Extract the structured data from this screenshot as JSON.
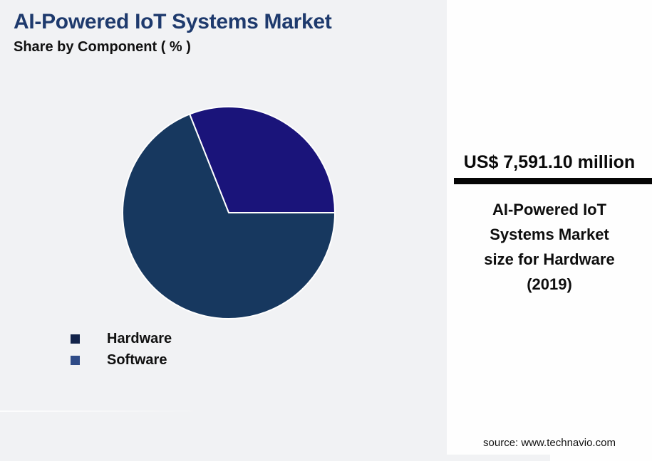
{
  "page": {
    "background": "#F1F2F4"
  },
  "header": {
    "title": "AI-Powered IoT Systems Market",
    "subtitle": "Share by Component ( % )",
    "title_color": "#1E3A6D"
  },
  "chart_data": {
    "type": "pie",
    "title": "AI-Powered IoT Systems Market",
    "subtitle": "Share by Component ( % )",
    "legend_position": "bottom-left",
    "start_angle_deg": 0,
    "direction": "counterclockwise",
    "divider_color": "#FFFFFF",
    "slices": [
      {
        "label": "Hardware",
        "value": 69,
        "color": "#17385F",
        "legend_color": "#12234A"
      },
      {
        "label": "Software",
        "value": 31,
        "color": "#1A147A",
        "legend_color": "#2F4B87"
      }
    ]
  },
  "panel": {
    "value": "US$ 7,591.10 million",
    "bar_color": "#050505",
    "description_lines": [
      "AI-Powered IoT",
      "Systems Market",
      "size for Hardware",
      "(2019)"
    ],
    "source": "source: www.technavio.com",
    "background": "#FEFEFE"
  }
}
